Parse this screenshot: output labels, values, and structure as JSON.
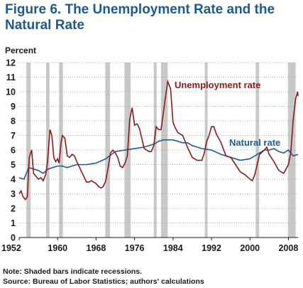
{
  "figure": {
    "title": "Figure 6. The Unemployment Rate and the Natural Rate",
    "notes": [
      "Note: Shaded bars indicate recessions.",
      "Source: Bureau of Labor Statistics; authors' calculations"
    ]
  },
  "chart_data": {
    "type": "line",
    "title": "Figure 6. The Unemployment Rate and the Natural Rate",
    "ylabel": "Percent",
    "xlabel": "",
    "xlim": [
      1952,
      2010
    ],
    "ylim": [
      0,
      12
    ],
    "y_ticks": [
      0,
      1,
      2,
      3,
      4,
      5,
      6,
      7,
      8,
      9,
      10,
      11,
      12
    ],
    "x_ticks": [
      1952,
      1960,
      1968,
      1976,
      1984,
      1992,
      2000,
      2008
    ],
    "grid": true,
    "colors": {
      "unemployment": "#8b1a1a",
      "natural": "#1f5a8c",
      "recession": "#c8c8c8"
    },
    "recessions": [
      [
        1953.5,
        1954.4
      ],
      [
        1957.6,
        1958.3
      ],
      [
        1960.3,
        1961.1
      ],
      [
        1969.9,
        1970.9
      ],
      [
        1973.9,
        1975.2
      ],
      [
        1980.0,
        1980.6
      ],
      [
        1981.5,
        1982.9
      ],
      [
        1990.6,
        1991.2
      ],
      [
        2001.2,
        2001.9
      ],
      [
        2007.9,
        2009.5
      ]
    ],
    "series": [
      {
        "name": "Unemployment rate",
        "key": "unemployment",
        "x": [
          1952,
          1952.4,
          1952.8,
          1953.3,
          1953.7,
          1954.1,
          1954.6,
          1955.0,
          1955.5,
          1956.0,
          1956.5,
          1957.0,
          1957.5,
          1957.9,
          1958.4,
          1958.8,
          1959.2,
          1959.6,
          1960.0,
          1960.3,
          1960.7,
          1961.0,
          1961.5,
          1962.0,
          1962.5,
          1963.0,
          1963.5,
          1964.0,
          1965.0,
          1966.0,
          1966.5,
          1967.0,
          1967.5,
          1968.0,
          1968.5,
          1969.0,
          1969.5,
          1970.0,
          1970.5,
          1971.0,
          1971.5,
          1972.0,
          1972.5,
          1973.0,
          1973.5,
          1974.0,
          1974.5,
          1975.0,
          1975.5,
          1976.0,
          1976.5,
          1977.0,
          1978.0,
          1979.0,
          1979.5,
          1980.0,
          1980.5,
          1981.0,
          1981.5,
          1982.0,
          1982.5,
          1982.9,
          1983.5,
          1984.0,
          1984.5,
          1985.0,
          1986.0,
          1987.0,
          1988.0,
          1989.0,
          1990.0,
          1990.5,
          1991.0,
          1991.5,
          1992.0,
          1992.5,
          1993.0,
          1994.0,
          1995.0,
          1996.0,
          1997.0,
          1998.0,
          1999.0,
          2000.0,
          2000.5,
          2001.0,
          2001.5,
          2002.0,
          2003.0,
          2003.5,
          2004.0,
          2005.0,
          2006.0,
          2007.0,
          2007.5,
          2008.0,
          2008.5,
          2009.0,
          2009.5,
          2009.9,
          2010.0
        ],
        "values": [
          3.0,
          3.2,
          2.8,
          2.6,
          2.8,
          5.5,
          6.0,
          4.4,
          4.2,
          4.0,
          4.1,
          3.9,
          4.3,
          5.2,
          7.4,
          7.0,
          5.5,
          5.2,
          5.4,
          5.1,
          6.5,
          7.0,
          6.8,
          5.6,
          5.5,
          5.7,
          5.6,
          5.2,
          4.5,
          3.8,
          3.8,
          3.9,
          3.8,
          3.7,
          3.5,
          3.4,
          3.5,
          3.9,
          4.8,
          5.8,
          6.0,
          5.8,
          5.5,
          4.9,
          4.8,
          5.1,
          5.6,
          8.1,
          8.9,
          7.7,
          7.8,
          7.5,
          6.1,
          5.9,
          5.9,
          6.3,
          7.6,
          7.4,
          7.4,
          8.6,
          9.8,
          10.7,
          10.2,
          7.9,
          7.5,
          7.2,
          7.0,
          6.2,
          5.5,
          5.3,
          5.3,
          5.8,
          6.6,
          7.0,
          7.6,
          7.6,
          7.1,
          6.5,
          5.6,
          5.5,
          5.0,
          4.5,
          4.3,
          4.0,
          3.9,
          4.3,
          5.0,
          5.7,
          6.0,
          6.2,
          5.7,
          5.2,
          4.6,
          4.4,
          4.7,
          5.0,
          5.8,
          8.1,
          9.5,
          10.0,
          9.7
        ]
      },
      {
        "name": "Natural rate",
        "key": "natural",
        "x": [
          1952,
          1953,
          1954,
          1955,
          1956,
          1957,
          1958,
          1959,
          1960,
          1961,
          1962,
          1963,
          1964,
          1966,
          1968,
          1970,
          1972,
          1974,
          1976,
          1978,
          1980,
          1981,
          1982,
          1983,
          1984,
          1985,
          1986,
          1987,
          1988,
          1990,
          1992,
          1994,
          1996,
          1998,
          2000,
          2001,
          2002,
          2003,
          2004,
          2005,
          2006,
          2007,
          2008,
          2009,
          2010
        ],
        "values": [
          4.1,
          4.0,
          4.8,
          4.7,
          4.6,
          4.4,
          4.7,
          4.8,
          4.9,
          4.9,
          4.8,
          4.9,
          5.0,
          5.0,
          5.1,
          5.4,
          5.9,
          6.0,
          6.1,
          6.2,
          6.4,
          6.6,
          6.7,
          6.7,
          6.7,
          6.6,
          6.5,
          6.5,
          6.3,
          6.1,
          6.0,
          5.7,
          5.5,
          5.3,
          5.4,
          5.6,
          5.8,
          6.0,
          6.0,
          6.1,
          5.9,
          5.8,
          6.0,
          5.6,
          5.7
        ]
      }
    ],
    "annotations": [
      {
        "series": "unemployment",
        "text": "Unemployment rate"
      },
      {
        "series": "natural",
        "text": "Natural rate"
      }
    ]
  }
}
